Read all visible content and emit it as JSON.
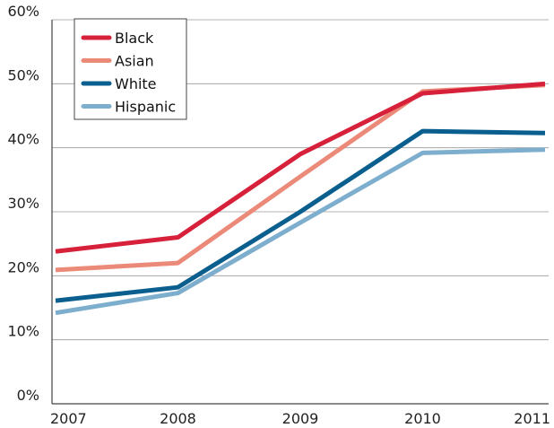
{
  "chart_data": {
    "type": "line",
    "title": "",
    "xlabel": "",
    "ylabel": "",
    "categories": [
      "2007",
      "2008",
      "2009",
      "2010",
      "2011"
    ],
    "ylim": [
      0,
      60
    ],
    "yticks": [
      0,
      10,
      20,
      30,
      40,
      50,
      60
    ],
    "ytick_labels": [
      "0%",
      "10%",
      "20%",
      "30%",
      "40%",
      "50%",
      "60%"
    ],
    "grid": "horizontal",
    "legend_position": "top-left",
    "series": [
      {
        "name": "Black",
        "color": "#d7213a",
        "values": [
          23.8,
          26.0,
          39.0,
          48.5,
          50.0
        ]
      },
      {
        "name": "Asian",
        "color": "#ec8a7a",
        "values": [
          20.9,
          22.0,
          35.5,
          48.8,
          49.8
        ]
      },
      {
        "name": "White",
        "color": "#0a5f8e",
        "values": [
          16.1,
          18.2,
          30.0,
          42.6,
          42.3
        ]
      },
      {
        "name": "Hispanic",
        "color": "#7eaecd",
        "values": [
          14.2,
          17.3,
          28.3,
          39.2,
          39.7
        ]
      }
    ]
  }
}
